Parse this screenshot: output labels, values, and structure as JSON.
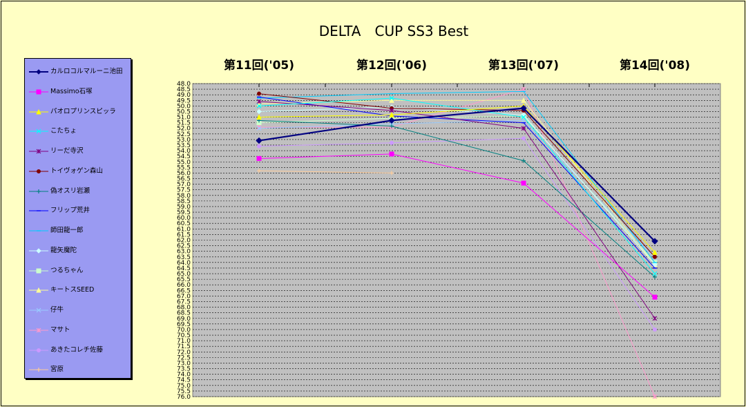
{
  "chart_data": {
    "type": "line",
    "title": "DELTA　CUP SS3 Best",
    "categories": [
      "第11回('05)",
      "第12回('06)",
      "第13回('07)",
      "第14回('08)"
    ],
    "ylim": [
      48.0,
      76.0
    ],
    "y_reversed": true,
    "y_tick_step": 0.5,
    "grid": true,
    "legend_position": "left",
    "series": [
      {
        "name": "カルロコルマルーニ池田",
        "color": "#000080",
        "marker": "diamond",
        "values": [
          53.1,
          51.3,
          50.2,
          62.1
        ]
      },
      {
        "name": "Massimo石塚",
        "color": "#ff00ff",
        "marker": "square",
        "values": [
          54.7,
          54.3,
          56.9,
          67.1
        ]
      },
      {
        "name": "パオロプリンスピッラ",
        "color": "#ffff00",
        "marker": "triangle",
        "values": [
          51.0,
          50.8,
          50.0,
          63.1
        ]
      },
      {
        "name": "こたちょ",
        "color": "#00ffff",
        "marker": "x",
        "values": [
          50.0,
          49.3,
          51.0,
          65.0
        ]
      },
      {
        "name": "リーだ寺沢",
        "color": "#800080",
        "marker": "star",
        "values": [
          49.6,
          50.4,
          52.0,
          69.0
        ]
      },
      {
        "name": "トイヴォゲン森山",
        "color": "#800000",
        "marker": "circle",
        "values": [
          48.9,
          50.2,
          50.4,
          63.5
        ]
      },
      {
        "name": "偽オスリ岩瀬",
        "color": "#008080",
        "marker": "plus",
        "values": [
          51.3,
          51.8,
          54.9,
          65.3
        ]
      },
      {
        "name": "フリップ荒井",
        "color": "#0000ff",
        "marker": "dash",
        "values": [
          49.2,
          50.9,
          51.5,
          64.5
        ]
      },
      {
        "name": "師田龍一郎",
        "color": "#00ccff",
        "marker": "dash",
        "values": [
          49.3,
          48.9,
          48.7,
          64.0
        ]
      },
      {
        "name": "龍矢魔陀",
        "color": "#ccffff",
        "marker": "diamond",
        "values": [
          50.5,
          50.1,
          50.8,
          64.2
        ]
      },
      {
        "name": "つるちゃん",
        "color": "#ccffcc",
        "marker": "square",
        "values": [
          51.5,
          51.1,
          50.9,
          64.0
        ]
      },
      {
        "name": "キートスSEED",
        "color": "#ffff99",
        "marker": "triangle",
        "values": [
          49.8,
          49.5,
          49.5,
          64.2
        ]
      },
      {
        "name": "仔牛",
        "color": "#99ccff",
        "marker": "x",
        "values": [
          52.0,
          51.6,
          51.3,
          63.6
        ]
      },
      {
        "name": "マサト",
        "color": "#ff99cc",
        "marker": "star",
        "values": [
          51.9,
          51.9,
          48.5,
          76.0
        ]
      },
      {
        "name": "あきたコレチ佐藤",
        "color": "#cc99ff",
        "marker": "circle",
        "values": [
          53.6,
          53.3,
          52.9,
          70.0
        ]
      },
      {
        "name": "宮原",
        "color": "#ffcc99",
        "marker": "plus",
        "values": [
          55.8,
          56.0,
          null,
          null
        ]
      }
    ]
  }
}
